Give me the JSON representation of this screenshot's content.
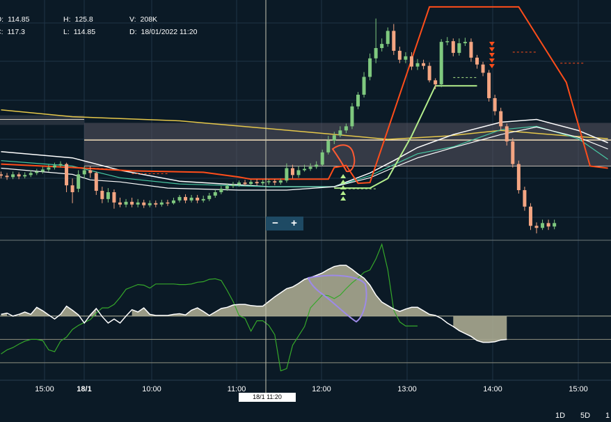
{
  "ohlc": {
    "open_label": "O:",
    "open_value": "114.85",
    "close_label": "C:",
    "close_value": "117.3",
    "high_label": "H:",
    "high_value": "125.8",
    "low_label": "L:",
    "low_value": "114.85",
    "volume_label": "V:",
    "volume_value": "208K",
    "date_label": "D:",
    "date_value": "18/01/2022 11:20"
  },
  "zoom": {
    "minus": "−",
    "plus": "+"
  },
  "cursor_label": "18/1 11:20",
  "range_buttons": [
    "1D",
    "5D",
    "1"
  ],
  "colors": {
    "background": "#0b1a26",
    "up": "#7fc97f",
    "down": "#f4a582",
    "red_line": "#ff4d1a",
    "green_line": "#b4ee8c",
    "yellow_line": "#e6c84a",
    "white_line": "#ffffff",
    "teal_line": "#48c9a4",
    "oscillator_fill": "#a8a890",
    "indicator_green": "#35a82a",
    "annotation_blue": "#9d8ae8",
    "annotation_red": "#ff5a32"
  },
  "chart_data": {
    "type": "candlestick",
    "x_tick_labels": [
      {
        "label": "15:00",
        "bold": false
      },
      {
        "label": "18/1",
        "bold": true
      },
      {
        "label": "10:00",
        "bold": false
      },
      {
        "label": "11:00",
        "bold": false
      },
      {
        "label": "12:00",
        "bold": false
      },
      {
        "label": "13:00",
        "bold": false
      },
      {
        "label": "14:00",
        "bold": false
      },
      {
        "label": "15:00",
        "bold": false
      }
    ],
    "candles": [
      [
        114.6,
        114.4,
        115.0,
        114.0
      ],
      [
        114.4,
        114.2,
        114.8,
        113.8
      ],
      [
        114.2,
        114.6,
        115.0,
        113.9
      ],
      [
        114.6,
        114.3,
        114.9,
        113.9
      ],
      [
        114.3,
        114.5,
        114.9,
        114.0
      ],
      [
        114.5,
        114.8,
        115.2,
        114.2
      ],
      [
        114.8,
        115.0,
        115.4,
        114.5
      ],
      [
        115.0,
        115.3,
        115.7,
        114.7
      ],
      [
        115.3,
        115.6,
        116.0,
        115.0
      ],
      [
        115.6,
        115.9,
        116.3,
        115.3
      ],
      [
        115.9,
        116.1,
        116.5,
        115.6
      ],
      [
        116.1,
        113.0,
        116.3,
        112.0
      ],
      [
        113.0,
        112.0,
        114.0,
        110.4
      ],
      [
        112.5,
        114.6,
        115.2,
        112.0
      ],
      [
        114.6,
        115.2,
        115.8,
        114.0
      ],
      [
        115.2,
        114.8,
        115.8,
        114.1
      ],
      [
        114.8,
        112.2,
        115.0,
        111.6
      ],
      [
        112.2,
        111.0,
        112.8,
        110.4
      ],
      [
        111.0,
        112.0,
        112.6,
        110.5
      ],
      [
        112.0,
        110.5,
        112.4,
        109.6
      ],
      [
        110.5,
        110.2,
        111.2,
        109.8
      ],
      [
        110.2,
        110.6,
        111.0,
        109.8
      ],
      [
        110.6,
        110.2,
        111.2,
        109.8
      ],
      [
        110.2,
        110.5,
        111.0,
        109.8
      ],
      [
        110.5,
        110.1,
        110.9,
        109.7
      ],
      [
        110.1,
        110.4,
        110.8,
        109.8
      ],
      [
        110.4,
        110.2,
        110.8,
        109.8
      ],
      [
        110.2,
        110.5,
        110.9,
        109.9
      ],
      [
        110.5,
        110.4,
        110.9,
        110.0
      ],
      [
        110.4,
        110.8,
        111.2,
        110.2
      ],
      [
        110.8,
        111.3,
        111.6,
        110.5
      ],
      [
        111.3,
        110.8,
        111.7,
        110.4
      ],
      [
        110.8,
        111.2,
        111.6,
        110.5
      ],
      [
        111.2,
        110.8,
        111.6,
        110.4
      ],
      [
        110.8,
        111.0,
        111.5,
        110.5
      ],
      [
        111.0,
        111.5,
        111.9,
        110.7
      ],
      [
        111.5,
        112.0,
        112.4,
        111.2
      ],
      [
        112.0,
        112.5,
        112.9,
        111.7
      ],
      [
        112.5,
        112.9,
        113.3,
        112.2
      ],
      [
        112.9,
        113.1,
        113.5,
        112.6
      ],
      [
        113.1,
        113.4,
        113.7,
        112.8
      ],
      [
        113.4,
        113.2,
        113.8,
        112.9
      ],
      [
        113.2,
        113.5,
        113.8,
        112.9
      ],
      [
        113.5,
        113.3,
        113.9,
        113.0
      ],
      [
        113.3,
        113.5,
        113.8,
        113.0
      ],
      [
        113.5,
        113.6,
        113.9,
        113.1
      ],
      [
        113.6,
        113.4,
        113.9,
        113.0
      ],
      [
        113.4,
        113.7,
        114.0,
        113.1
      ],
      [
        113.7,
        115.5,
        116.2,
        113.4
      ],
      [
        115.5,
        114.5,
        116.0,
        114.0
      ],
      [
        114.5,
        115.2,
        115.8,
        114.1
      ],
      [
        115.2,
        115.4,
        116.0,
        115.0
      ],
      [
        115.4,
        115.7,
        116.2,
        115.1
      ],
      [
        115.7,
        116.0,
        116.5,
        115.4
      ],
      [
        116.0,
        117.8,
        118.2,
        115.8
      ],
      [
        117.8,
        119.5,
        120.2,
        117.5
      ],
      [
        119.5,
        120.3,
        120.8,
        119.0
      ],
      [
        120.3,
        121.0,
        121.6,
        120.0
      ],
      [
        121.0,
        121.6,
        122.0,
        120.6
      ],
      [
        121.6,
        124.5,
        125.0,
        121.2
      ],
      [
        124.5,
        126.2,
        126.6,
        124.1
      ],
      [
        126.2,
        128.8,
        129.5,
        125.8
      ],
      [
        128.8,
        131.5,
        132.2,
        128.3
      ],
      [
        131.5,
        133.0,
        137.3,
        130.8
      ],
      [
        133.0,
        133.6,
        134.4,
        132.5
      ],
      [
        133.6,
        135.5,
        136.0,
        133.2
      ],
      [
        135.5,
        132.6,
        136.5,
        132.0
      ],
      [
        132.6,
        131.3,
        133.2,
        130.8
      ],
      [
        131.3,
        131.8,
        132.4,
        130.8
      ],
      [
        131.8,
        130.3,
        132.4,
        129.8
      ],
      [
        130.3,
        130.8,
        131.4,
        129.8
      ],
      [
        130.8,
        130.4,
        131.3,
        129.9
      ],
      [
        130.4,
        128.3,
        130.9,
        128.0
      ],
      [
        128.3,
        127.7,
        128.6,
        127.0
      ],
      [
        127.7,
        133.9,
        134.3,
        127.3
      ],
      [
        133.9,
        134.0,
        134.6,
        133.4
      ],
      [
        134.0,
        132.3,
        134.4,
        131.8
      ],
      [
        132.3,
        133.7,
        134.4,
        131.9
      ],
      [
        133.7,
        133.9,
        134.5,
        133.3
      ],
      [
        133.9,
        131.6,
        134.4,
        131.0
      ],
      [
        131.6,
        130.6,
        132.0,
        130.0
      ],
      [
        130.6,
        129.4,
        131.0,
        128.9
      ],
      [
        129.4,
        125.7,
        129.8,
        125.2
      ],
      [
        125.7,
        123.8,
        126.2,
        123.2
      ],
      [
        123.8,
        121.6,
        124.3,
        121.0
      ],
      [
        121.6,
        119.4,
        122.0,
        118.8
      ],
      [
        119.4,
        116.1,
        119.9,
        115.6
      ],
      [
        116.1,
        112.3,
        116.6,
        111.8
      ],
      [
        112.3,
        109.9,
        112.8,
        109.3
      ],
      [
        109.9,
        107.1,
        110.4,
        106.5
      ],
      [
        107.1,
        106.8,
        107.6,
        106.0
      ],
      [
        106.8,
        107.5,
        108.0,
        106.5
      ],
      [
        107.5,
        107.0,
        108.0,
        106.5
      ],
      [
        107.0,
        107.5,
        108.0,
        106.6
      ]
    ],
    "oscillator": [
      0.3,
      0.5,
      0.0,
      0.3,
      0.7,
      0.3,
      1.5,
      0.9,
      0.2,
      -0.5,
      0.3,
      1.7,
      1.0,
      0.2,
      -1.2,
      0.2,
      1.3,
      -0.1,
      -1.2,
      -0.5,
      -1.2,
      0.0,
      1.1,
      0.7,
      1.4,
      0.3,
      0.1,
      0.1,
      0.1,
      0.3,
      0.4,
      0.2,
      1.0,
      1.4,
      0.8,
      0.1,
      0.7,
      1.3,
      1.5,
      1.9,
      2.0,
      2.0,
      1.8,
      1.7,
      1.7,
      2.5,
      3.3,
      4.0,
      4.7,
      5.0,
      5.6,
      6.3,
      6.6,
      7.0,
      7.4,
      8.0,
      8.5,
      8.7,
      8.7,
      8.0,
      7.2,
      6.5,
      5.3,
      3.6,
      2.4,
      1.8,
      1.2,
      0.8,
      1.2,
      1.5,
      1.5,
      0.9,
      0.3,
      0.1,
      -0.4,
      -1.2,
      -1.8,
      -2.5,
      -3.0,
      -3.5,
      -4.2,
      -4.5,
      -4.5,
      -4.4,
      -4.1,
      -4.0
    ],
    "green_line": [
      -6.5,
      -5.8,
      -5.4,
      -4.8,
      -4.3,
      -4.0,
      -4.0,
      -4.2,
      -5.8,
      -6.1,
      -4.3,
      -3.6,
      -2.3,
      -1.6,
      -1.1,
      -0.6,
      0.5,
      1.4,
      1.4,
      2.0,
      3.2,
      4.6,
      5.0,
      5.4,
      5.3,
      4.8,
      5.5,
      5.5,
      5.5,
      5.5,
      5.4,
      5.4,
      5.5,
      5.8,
      5.9,
      6.3,
      6.4,
      6.1,
      4.4,
      2.5,
      0.1,
      -0.4,
      -2.6,
      -0.8,
      -0.8,
      -1.6,
      -3.2,
      -9.4,
      -9.0,
      -5.0,
      -3.4,
      -1.8,
      1.4,
      2.5,
      3.6,
      3.5,
      3.0,
      3.6,
      4.7,
      5.7,
      6.5,
      7.5,
      7.9,
      9.8,
      12.3,
      7.9,
      1.0,
      -1.0,
      -1.7,
      -1.7,
      -1.7
    ],
    "ylim_price": [
      105.0,
      140.0
    ],
    "ylim_oscillator": [
      -11.0,
      13.0
    ]
  }
}
